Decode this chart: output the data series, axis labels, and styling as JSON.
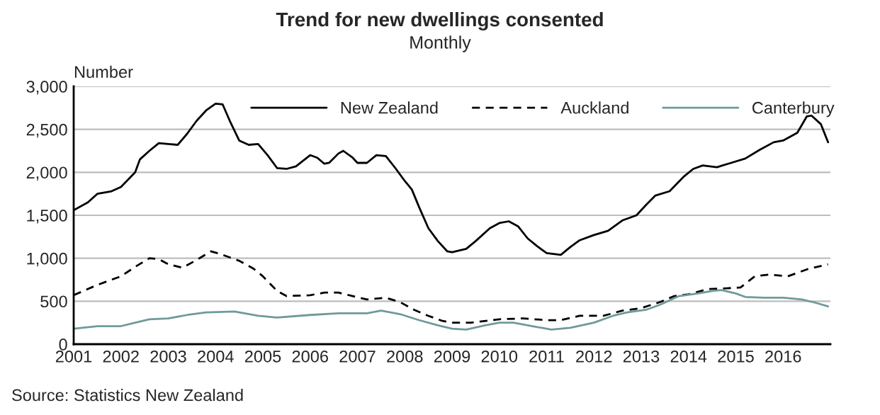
{
  "chart_data": {
    "type": "line",
    "title": "Trend for new dwellings consented",
    "subtitle": "Monthly",
    "ylabel": "Number",
    "xlim": [
      2001,
      2017
    ],
    "xticks": [
      2001,
      2002,
      2003,
      2004,
      2005,
      2006,
      2007,
      2008,
      2009,
      2010,
      2011,
      2012,
      2013,
      2014,
      2015,
      2016
    ],
    "ylim": [
      0,
      3000
    ],
    "yticks": [
      {
        "value": 0,
        "label": "0"
      },
      {
        "value": 500,
        "label": "500"
      },
      {
        "value": 1000,
        "label": "1,000"
      },
      {
        "value": 1500,
        "label": "1,500"
      },
      {
        "value": 2000,
        "label": "2,000"
      },
      {
        "value": 2500,
        "label": "2,500"
      },
      {
        "value": 3000,
        "label": "3,000"
      }
    ],
    "grid": "y",
    "legend": "top",
    "marker": "none",
    "annotations": [
      "Source: Statistics New Zealand"
    ],
    "series": [
      {
        "name": "New Zealand",
        "color": "#000000",
        "line_style": "solid",
        "x": [
          2001.0,
          2001.3,
          2001.5,
          2001.8,
          2002.0,
          2002.3,
          2002.4,
          2002.6,
          2002.8,
          2003.0,
          2003.2,
          2003.4,
          2003.6,
          2003.8,
          2004.0,
          2004.15,
          2004.3,
          2004.5,
          2004.7,
          2004.9,
          2005.1,
          2005.3,
          2005.5,
          2005.7,
          2006.0,
          2006.15,
          2006.3,
          2006.4,
          2006.6,
          2006.7,
          2006.9,
          2007.0,
          2007.2,
          2007.4,
          2007.6,
          2007.8,
          2008.0,
          2008.15,
          2008.3,
          2008.5,
          2008.7,
          2008.9,
          2009.0,
          2009.3,
          2009.5,
          2009.8,
          2010.0,
          2010.2,
          2010.4,
          2010.6,
          2010.8,
          2011.0,
          2011.3,
          2011.5,
          2011.7,
          2012.0,
          2012.3,
          2012.6,
          2012.9,
          2013.1,
          2013.3,
          2013.6,
          2013.9,
          2014.1,
          2014.3,
          2014.6,
          2014.9,
          2015.2,
          2015.5,
          2015.8,
          2016.0,
          2016.3,
          2016.5,
          2016.6,
          2016.8,
          2016.95
        ],
        "values": [
          1560,
          1650,
          1750,
          1780,
          1830,
          2000,
          2150,
          2250,
          2340,
          2330,
          2320,
          2450,
          2600,
          2720,
          2800,
          2790,
          2600,
          2370,
          2320,
          2330,
          2200,
          2050,
          2040,
          2070,
          2200,
          2170,
          2100,
          2110,
          2220,
          2250,
          2170,
          2110,
          2110,
          2200,
          2190,
          2050,
          1900,
          1800,
          1600,
          1350,
          1200,
          1080,
          1070,
          1110,
          1200,
          1350,
          1410,
          1430,
          1370,
          1230,
          1140,
          1060,
          1040,
          1130,
          1210,
          1270,
          1320,
          1440,
          1500,
          1620,
          1730,
          1780,
          1950,
          2040,
          2080,
          2060,
          2110,
          2160,
          2260,
          2350,
          2370,
          2460,
          2650,
          2660,
          2560,
          2350
        ]
      },
      {
        "name": "Auckland",
        "color": "#000000",
        "line_style": "dashed",
        "x": [
          2001.0,
          2001.5,
          2002.0,
          2002.3,
          2002.6,
          2002.8,
          2003.0,
          2003.3,
          2003.6,
          2003.9,
          2004.1,
          2004.5,
          2004.8,
          2005.0,
          2005.3,
          2005.5,
          2006.0,
          2006.3,
          2006.6,
          2006.9,
          2007.2,
          2007.6,
          2007.9,
          2008.2,
          2008.5,
          2008.8,
          2009.0,
          2009.4,
          2010.0,
          2010.5,
          2011.0,
          2011.3,
          2011.7,
          2012.2,
          2012.6,
          2013.0,
          2013.4,
          2013.7,
          2014.0,
          2014.4,
          2014.8,
          2015.1,
          2015.4,
          2015.7,
          2016.1,
          2016.5,
          2016.95
        ],
        "values": [
          570,
          690,
          790,
          900,
          1000,
          990,
          930,
          890,
          980,
          1080,
          1050,
          970,
          880,
          790,
          620,
          560,
          570,
          600,
          600,
          560,
          520,
          540,
          490,
          400,
          330,
          270,
          250,
          250,
          290,
          300,
          280,
          280,
          330,
          330,
          390,
          420,
          490,
          560,
          580,
          640,
          650,
          660,
          790,
          810,
          790,
          870,
          930
        ]
      },
      {
        "name": "Canterbury",
        "color": "#6f9a9a",
        "line_style": "solid",
        "x": [
          2001.0,
          2001.5,
          2002.0,
          2002.3,
          2002.6,
          2003.0,
          2003.4,
          2003.8,
          2004.4,
          2004.9,
          2005.3,
          2006.0,
          2006.6,
          2007.2,
          2007.5,
          2007.9,
          2008.3,
          2008.7,
          2009.0,
          2009.3,
          2009.7,
          2010.0,
          2010.3,
          2010.7,
          2011.1,
          2011.5,
          2012.0,
          2012.4,
          2012.7,
          2013.1,
          2013.4,
          2013.8,
          2014.2,
          2014.5,
          2014.7,
          2015.0,
          2015.2,
          2015.6,
          2016.0,
          2016.4,
          2016.7,
          2016.95
        ],
        "values": [
          180,
          210,
          210,
          250,
          290,
          300,
          340,
          370,
          380,
          330,
          310,
          340,
          360,
          360,
          390,
          350,
          280,
          220,
          180,
          170,
          220,
          250,
          250,
          210,
          170,
          190,
          250,
          330,
          370,
          400,
          460,
          560,
          590,
          620,
          630,
          590,
          550,
          540,
          540,
          520,
          480,
          440
        ]
      }
    ]
  }
}
